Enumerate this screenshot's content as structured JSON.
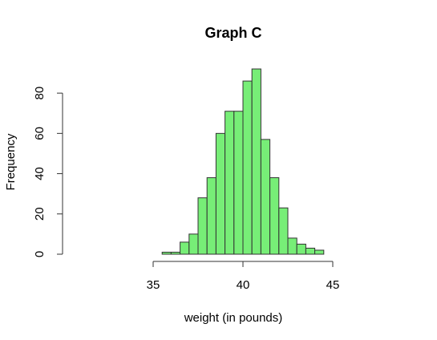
{
  "chart_data": {
    "type": "bar",
    "title": "Graph C",
    "xlabel": "weight (in pounds)",
    "ylabel": "Frequency",
    "bin_width": 0.5,
    "bin_starts": [
      35.5,
      36.0,
      36.5,
      37.0,
      37.5,
      38.0,
      38.5,
      39.0,
      39.5,
      40.0,
      40.5,
      41.0,
      41.5,
      42.0,
      42.5,
      43.0,
      43.5,
      44.0
    ],
    "values": [
      1,
      1,
      6,
      10,
      28,
      38,
      60,
      71,
      71,
      86,
      92,
      57,
      38,
      23,
      8,
      5,
      3,
      2
    ],
    "xlim": [
      35,
      45
    ],
    "ylim": [
      0,
      92
    ],
    "xticks": [
      35,
      40,
      45
    ],
    "yticks": [
      0,
      20,
      40,
      60,
      80
    ],
    "grid": false,
    "colors": {
      "bar_fill": "#77ee77",
      "bar_stroke": "#333333",
      "axis": "#333333",
      "text": "#000000"
    }
  }
}
